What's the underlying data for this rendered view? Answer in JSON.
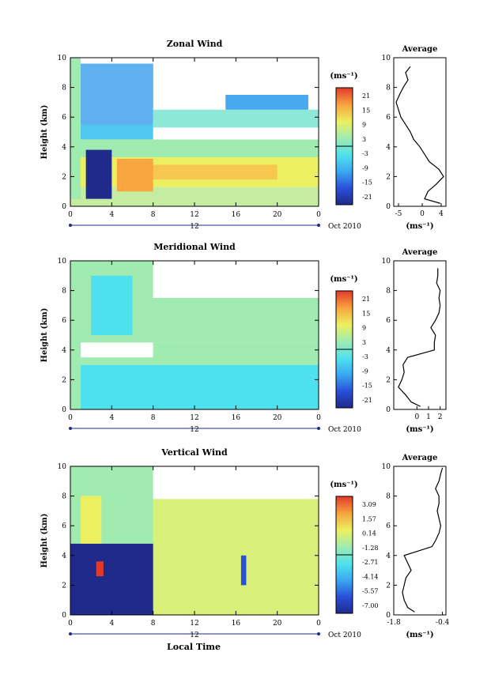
{
  "x_axis_label": "Local Time",
  "colorbar_unit": "(ms⁻¹)",
  "average_unit": "(ms⁻¹)",
  "average_title": "Average",
  "date_label": "12",
  "date_suffix": "Oct 2010",
  "chart_data": [
    {
      "type": "heatmap",
      "title": "Zonal Wind",
      "xlabel": "",
      "ylabel": "Height (km)",
      "xlim": [
        0,
        24
      ],
      "ylim": [
        0,
        10
      ],
      "xticks": [
        "0",
        "4",
        "8",
        "12",
        "16",
        "20",
        "0"
      ],
      "yticks": [
        "0",
        "2",
        "4",
        "6",
        "8",
        "10"
      ],
      "colorbar_ticks": [
        "21",
        "15",
        "9",
        "3",
        "-3",
        "-9",
        "-15",
        "-21"
      ],
      "avg_profile": {
        "xlim": [
          -6,
          5
        ],
        "xticks": [
          "-5",
          "0",
          "4"
        ],
        "yticks": [
          "0",
          "2",
          "4",
          "6",
          "8",
          "10"
        ],
        "height": [
          0.2,
          0.5,
          1.0,
          1.5,
          2.0,
          2.5,
          3.0,
          3.5,
          4.0,
          4.5,
          5.0,
          5.5,
          6.0,
          6.5,
          7.0,
          7.5,
          8.0,
          8.5,
          9.0,
          9.4
        ],
        "value": [
          3.8,
          0.5,
          1.2,
          3.0,
          4.5,
          3.5,
          1.5,
          0.5,
          -0.5,
          -1.8,
          -2.5,
          -3.5,
          -4.5,
          -5.0,
          -5.5,
          -4.8,
          -4.0,
          -3.0,
          -3.5,
          -2.5
        ]
      }
    },
    {
      "type": "heatmap",
      "title": "Meridional Wind",
      "xlabel": "",
      "ylabel": "Height (km)",
      "xlim": [
        0,
        24
      ],
      "ylim": [
        0,
        10
      ],
      "xticks": [
        "0",
        "4",
        "8",
        "12",
        "16",
        "20",
        "0"
      ],
      "yticks": [
        "0",
        "2",
        "4",
        "6",
        "8",
        "10"
      ],
      "colorbar_ticks": [
        "21",
        "15",
        "9",
        "3",
        "-3",
        "-9",
        "-15",
        "-21"
      ],
      "avg_profile": {
        "xlim": [
          -2,
          2.5
        ],
        "xticks": [
          "0",
          "1",
          "2"
        ],
        "yticks": [
          "0",
          "2",
          "4",
          "6",
          "8",
          "10"
        ],
        "height": [
          0.2,
          0.5,
          1.0,
          1.5,
          2.0,
          2.5,
          3.0,
          3.5,
          4.0,
          4.5,
          5.0,
          5.5,
          6.0,
          6.5,
          7.0,
          7.5,
          8.0,
          8.5,
          9.0,
          9.5
        ],
        "value": [
          0.3,
          -0.5,
          -1.0,
          -1.6,
          -1.3,
          -1.1,
          -1.2,
          -0.8,
          1.5,
          1.5,
          1.6,
          1.2,
          1.6,
          1.9,
          2.0,
          1.9,
          2.0,
          1.7,
          1.8,
          1.8
        ]
      }
    },
    {
      "type": "heatmap",
      "title": "Vertical Wind",
      "xlabel": "Local Time",
      "ylabel": "Height (km)",
      "xlim": [
        0,
        24
      ],
      "ylim": [
        0,
        10
      ],
      "xticks": [
        "0",
        "4",
        "8",
        "12",
        "16",
        "20",
        "0"
      ],
      "yticks": [
        "0",
        "2",
        "4",
        "6",
        "8",
        "10"
      ],
      "colorbar_ticks": [
        "3.09",
        "1.57",
        "0.14",
        "-1.28",
        "-2.71",
        "-4.14",
        "-5.57",
        "-7.00"
      ],
      "avg_profile": {
        "xlim": [
          -1.8,
          -0.3
        ],
        "xticks": [
          "-1.8",
          "-0.4"
        ],
        "yticks": [
          "0",
          "2",
          "4",
          "6",
          "8",
          "10"
        ],
        "height": [
          0.2,
          0.5,
          1.0,
          1.5,
          2.0,
          2.5,
          3.0,
          3.5,
          4.0,
          4.3,
          4.6,
          5.0,
          5.5,
          6.0,
          6.5,
          7.0,
          7.5,
          8.0,
          8.5,
          9.0,
          9.5,
          9.9
        ],
        "value": [
          -1.2,
          -1.4,
          -1.5,
          -1.55,
          -1.5,
          -1.45,
          -1.3,
          -1.4,
          -1.5,
          -1.1,
          -0.7,
          -0.6,
          -0.5,
          -0.45,
          -0.5,
          -0.55,
          -0.5,
          -0.5,
          -0.6,
          -0.5,
          -0.45,
          -0.4
        ]
      }
    }
  ]
}
